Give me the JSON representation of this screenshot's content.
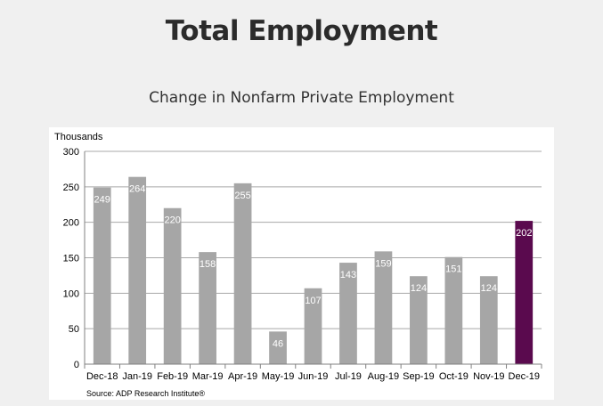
{
  "page": {
    "title": "Total Employment",
    "subtitle": "Change in Nonfarm Private Employment"
  },
  "chart_data": {
    "type": "bar",
    "title": "",
    "ylabel": "Thousands",
    "xlabel": "",
    "ylim": [
      0,
      300
    ],
    "yticks": [
      0,
      50,
      100,
      150,
      200,
      250,
      300
    ],
    "grid": true,
    "categories": [
      "Dec-18",
      "Jan-19",
      "Feb-19",
      "Mar-19",
      "Apr-19",
      "May-19",
      "Jun-19",
      "Jul-19",
      "Aug-19",
      "Sep-19",
      "Oct-19",
      "Nov-19",
      "Dec-19"
    ],
    "values": [
      249,
      264,
      220,
      158,
      255,
      46,
      107,
      143,
      159,
      124,
      151,
      124,
      202
    ],
    "colors": {
      "default": "#a6a6a6",
      "highlight": "#5a0a4e",
      "grid": "#a8a8a8"
    },
    "highlight_index": 12,
    "source": "Source: ADP Research Institute®"
  }
}
